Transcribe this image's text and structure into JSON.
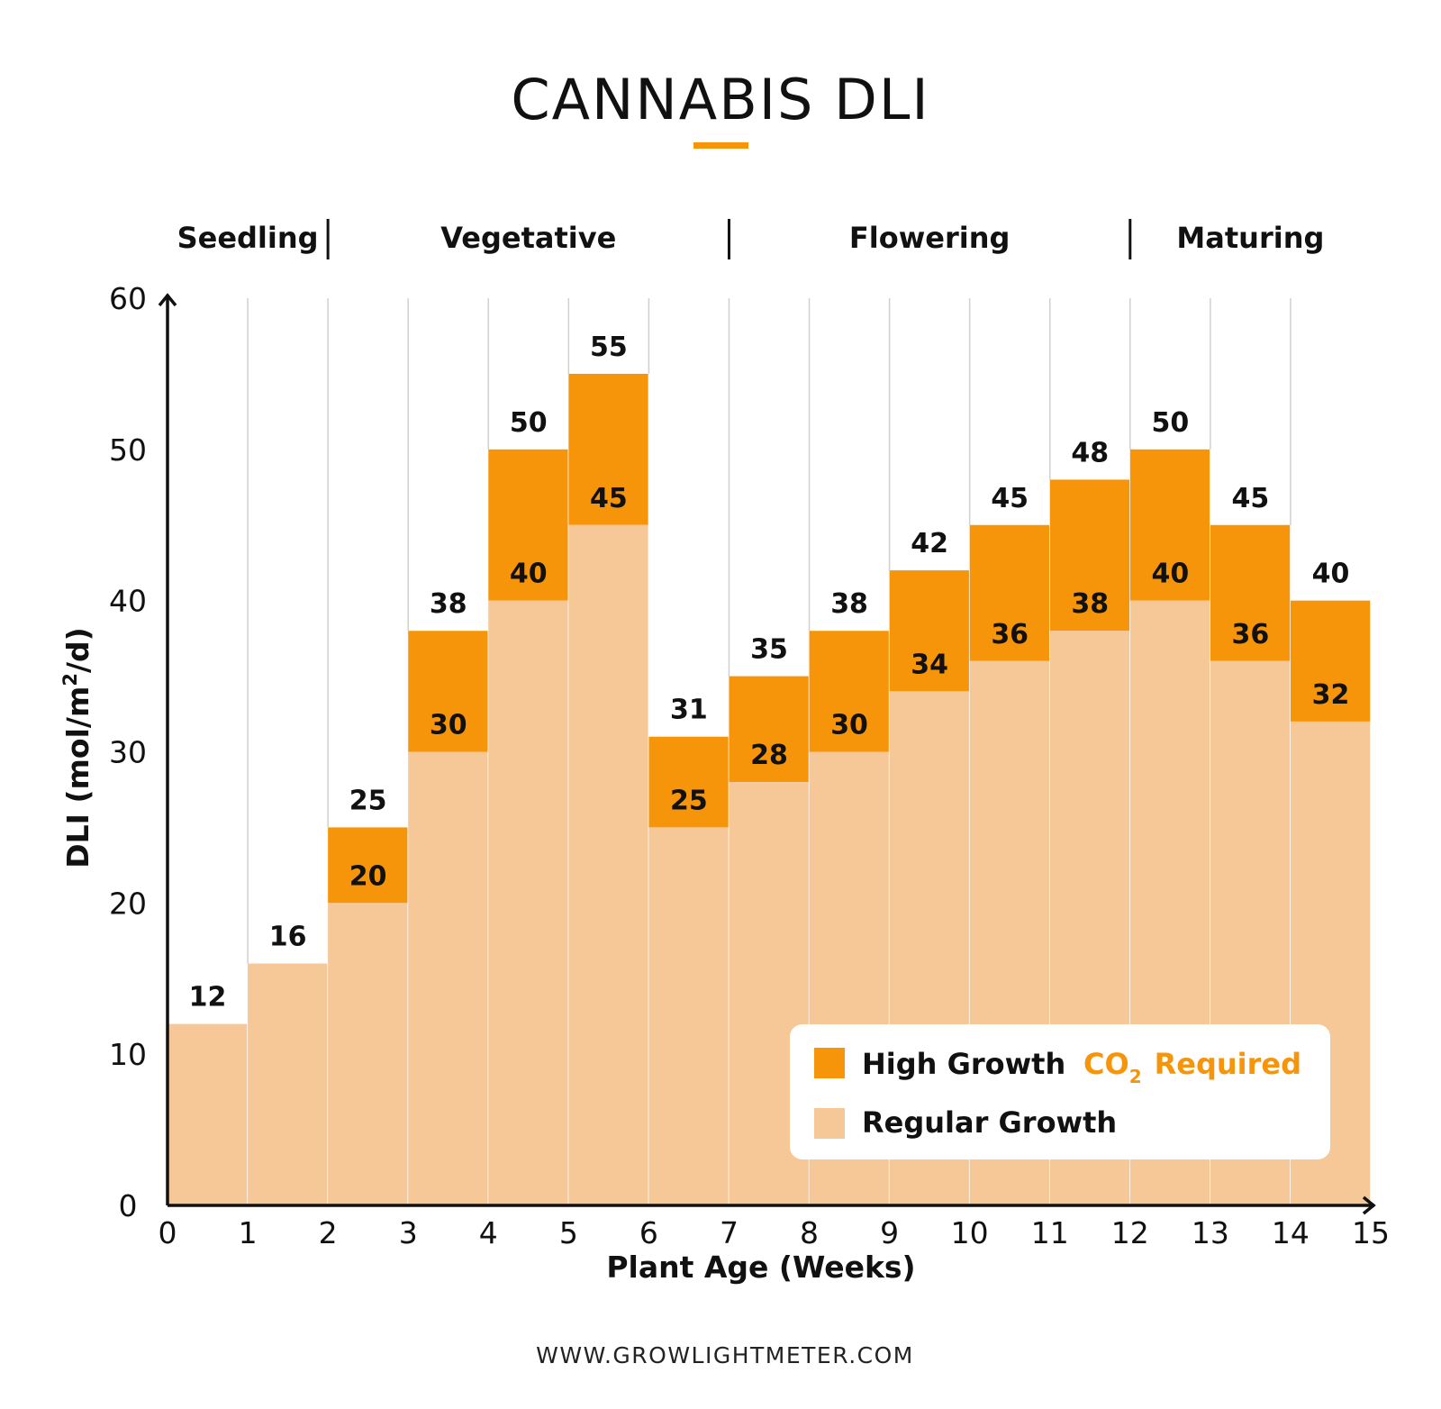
{
  "chart_data": {
    "type": "bar",
    "title": "CANNABIS DLI",
    "xlabel": "Plant Age (Weeks)",
    "ylabel": "DLI (mol/m²/d)",
    "ylim": [
      0,
      60
    ],
    "xlim": [
      0,
      15
    ],
    "y_ticks": [
      0,
      10,
      20,
      30,
      40,
      50,
      60
    ],
    "x_ticks": [
      0,
      1,
      2,
      3,
      4,
      5,
      6,
      7,
      8,
      9,
      10,
      11,
      12,
      13,
      14,
      15
    ],
    "phases": [
      {
        "name": "Seedling",
        "start": 0,
        "end": 2
      },
      {
        "name": "Vegetative",
        "start": 2,
        "end": 7
      },
      {
        "name": "Flowering",
        "start": 7,
        "end": 12
      },
      {
        "name": "Maturing",
        "start": 12,
        "end": 15
      }
    ],
    "series": [
      {
        "name": "Regular Growth",
        "color": "#f7c897",
        "values": [
          12,
          16,
          20,
          30,
          40,
          45,
          25,
          28,
          30,
          34,
          36,
          38,
          40,
          36,
          32
        ]
      },
      {
        "name": "High Growth",
        "color": "#f7950a",
        "values": [
          12,
          16,
          25,
          38,
          50,
          55,
          31,
          35,
          38,
          42,
          45,
          48,
          50,
          45,
          40
        ]
      }
    ],
    "legend": {
      "position": "bottom-right",
      "high_label": "High Growth",
      "co2_prefix": "CO",
      "co2_subscript": "2",
      "co2_suffix": "Required",
      "regular_label": "Regular Growth"
    }
  },
  "footer": "WWW.GROWLIGHTMETER.COM",
  "colors": {
    "accent": "#f7950a",
    "regular": "#f7c897",
    "text": "#111111",
    "grid": "#d0d0d0"
  }
}
